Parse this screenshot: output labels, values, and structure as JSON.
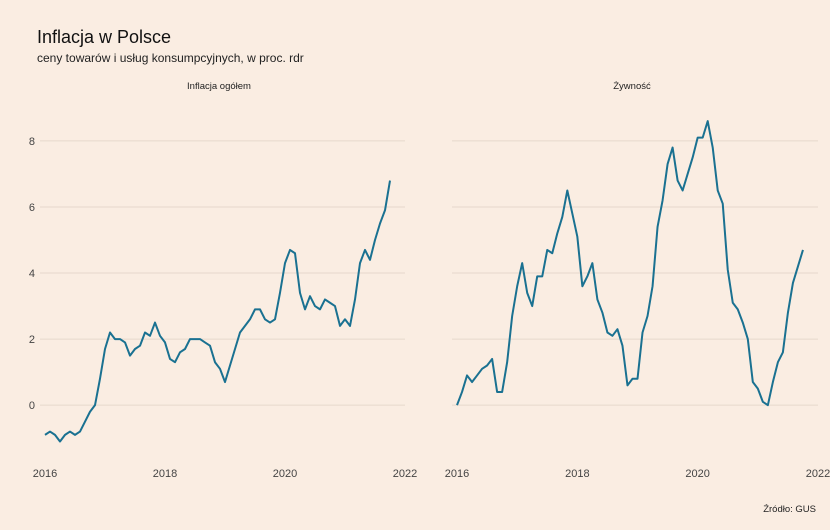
{
  "title": "Inflacja w Polsce",
  "subtitle": "ceny towarów i usług konsumpcyjnych, w proc. rdr",
  "caption": "Źródło: GUS",
  "colors": {
    "background": "#faede2",
    "line": "#1a7191",
    "grid": "#e6d8cc"
  },
  "chart_data": [
    {
      "type": "line",
      "title": "Inflacja ogółem",
      "xlabel": "",
      "ylabel": "",
      "x_ticks": [
        2016,
        2018,
        2020,
        2022
      ],
      "y_ticks": [
        0,
        2,
        4,
        6,
        8
      ],
      "xlim": [
        "2015-12",
        "2022-01"
      ],
      "ylim": [
        -1.6,
        9.3
      ],
      "grid": true,
      "series": [
        {
          "x": [
            "2016-01",
            "2016-02",
            "2016-03",
            "2016-04",
            "2016-05",
            "2016-06",
            "2016-07",
            "2016-08",
            "2016-09",
            "2016-10",
            "2016-11",
            "2016-12",
            "2017-01",
            "2017-02",
            "2017-03",
            "2017-04",
            "2017-05",
            "2017-06",
            "2017-07",
            "2017-08",
            "2017-09",
            "2017-10",
            "2017-11",
            "2017-12",
            "2018-01",
            "2018-02",
            "2018-03",
            "2018-04",
            "2018-05",
            "2018-06",
            "2018-07",
            "2018-08",
            "2018-09",
            "2018-10",
            "2018-11",
            "2018-12",
            "2019-01",
            "2019-02",
            "2019-03",
            "2019-04",
            "2019-05",
            "2019-06",
            "2019-07",
            "2019-08",
            "2019-09",
            "2019-10",
            "2019-11",
            "2019-12",
            "2020-01",
            "2020-02",
            "2020-03",
            "2020-04",
            "2020-05",
            "2020-06",
            "2020-07",
            "2020-08",
            "2020-09",
            "2020-10",
            "2020-11",
            "2020-12",
            "2021-01",
            "2021-02",
            "2021-03",
            "2021-04",
            "2021-05",
            "2021-06",
            "2021-07",
            "2021-08",
            "2021-09",
            "2021-10"
          ],
          "values": [
            -0.9,
            -0.8,
            -0.9,
            -1.1,
            -0.9,
            -0.8,
            -0.9,
            -0.8,
            -0.5,
            -0.2,
            0.0,
            0.8,
            1.7,
            2.2,
            2.0,
            2.0,
            1.9,
            1.5,
            1.7,
            1.8,
            2.2,
            2.1,
            2.5,
            2.1,
            1.9,
            1.4,
            1.3,
            1.6,
            1.7,
            2.0,
            2.0,
            2.0,
            1.9,
            1.8,
            1.3,
            1.1,
            0.7,
            1.2,
            1.7,
            2.2,
            2.4,
            2.6,
            2.9,
            2.9,
            2.6,
            2.5,
            2.6,
            3.4,
            4.3,
            4.7,
            4.6,
            3.4,
            2.9,
            3.3,
            3.0,
            2.9,
            3.2,
            3.1,
            3.0,
            2.4,
            2.6,
            2.4,
            3.2,
            4.3,
            4.7,
            4.4,
            5.0,
            5.5,
            5.9,
            6.8
          ]
        }
      ]
    },
    {
      "type": "line",
      "title": "Żywność",
      "xlabel": "",
      "ylabel": "",
      "x_ticks": [
        2016,
        2018,
        2020,
        2022
      ],
      "y_ticks": [
        0,
        2,
        4,
        6,
        8
      ],
      "xlim": [
        "2015-12",
        "2022-01"
      ],
      "ylim": [
        -1.6,
        9.3
      ],
      "grid": true,
      "series": [
        {
          "x": [
            "2016-01",
            "2016-02",
            "2016-03",
            "2016-04",
            "2016-05",
            "2016-06",
            "2016-07",
            "2016-08",
            "2016-09",
            "2016-10",
            "2016-11",
            "2016-12",
            "2017-01",
            "2017-02",
            "2017-03",
            "2017-04",
            "2017-05",
            "2017-06",
            "2017-07",
            "2017-08",
            "2017-09",
            "2017-10",
            "2017-11",
            "2017-12",
            "2018-01",
            "2018-02",
            "2018-03",
            "2018-04",
            "2018-05",
            "2018-06",
            "2018-07",
            "2018-08",
            "2018-09",
            "2018-10",
            "2018-11",
            "2018-12",
            "2019-01",
            "2019-02",
            "2019-03",
            "2019-04",
            "2019-05",
            "2019-06",
            "2019-07",
            "2019-08",
            "2019-09",
            "2019-10",
            "2019-11",
            "2019-12",
            "2020-01",
            "2020-02",
            "2020-03",
            "2020-04",
            "2020-05",
            "2020-06",
            "2020-07",
            "2020-08",
            "2020-09",
            "2020-10",
            "2020-11",
            "2020-12",
            "2021-01",
            "2021-02",
            "2021-03",
            "2021-04",
            "2021-05",
            "2021-06",
            "2021-07",
            "2021-08",
            "2021-09",
            "2021-10"
          ],
          "values": [
            0.0,
            0.4,
            0.9,
            0.7,
            0.9,
            1.1,
            1.2,
            1.4,
            0.4,
            0.4,
            1.3,
            2.7,
            3.6,
            4.3,
            3.4,
            3.0,
            3.9,
            3.9,
            4.7,
            4.6,
            5.2,
            5.7,
            6.5,
            5.8,
            5.1,
            3.6,
            3.9,
            4.3,
            3.2,
            2.8,
            2.2,
            2.1,
            2.3,
            1.8,
            0.6,
            0.8,
            0.8,
            2.2,
            2.7,
            3.6,
            5.4,
            6.2,
            7.3,
            7.8,
            6.8,
            6.5,
            7.0,
            7.5,
            8.1,
            8.1,
            8.6,
            7.8,
            6.5,
            6.1,
            4.1,
            3.1,
            2.9,
            2.5,
            2.0,
            0.7,
            0.5,
            0.1,
            0.0,
            0.7,
            1.3,
            1.6,
            2.8,
            3.7,
            4.2,
            4.7
          ]
        }
      ]
    }
  ]
}
